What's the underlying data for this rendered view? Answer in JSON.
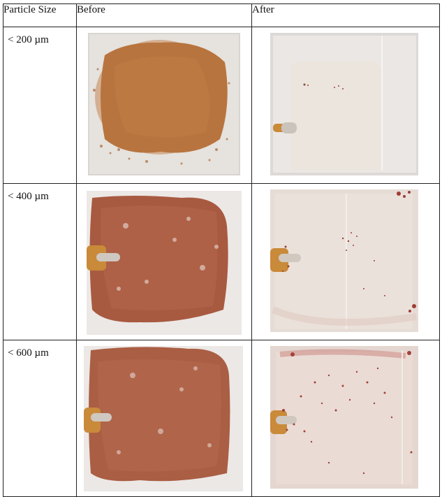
{
  "table": {
    "headers": [
      "Particle Size",
      "Before",
      "After"
    ],
    "rows": [
      {
        "size": "< 200 µm",
        "before_alt": "Glass plate fully covered with fine orange-brown powder",
        "after_alt": "Clean transparent glass plate with electrode clip"
      },
      {
        "size": "< 400 µm",
        "before_alt": "Plate covered with reddish-brown granular powder, electrode at left",
        "after_alt": "Mostly clean plate with scattered red particles"
      },
      {
        "size": "< 600 µm",
        "before_alt": "Plate covered with coarse reddish powder, electrode at left",
        "after_alt": "Plate with residual scattered coarse red particles"
      }
    ]
  },
  "colors": {
    "fine_powder": "#b8743e",
    "medium_powder": "#a85a40",
    "coarse_powder": "#aa5e44",
    "plate_bg": "#eae6e3",
    "electrode": "#c98a3a"
  }
}
